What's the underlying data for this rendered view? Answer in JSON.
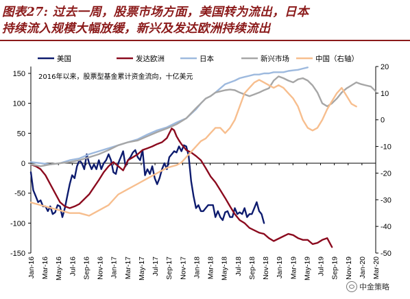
{
  "header": {
    "title_line1": "图表27: 过去一周，股票市场方面，美国转为流出，日本",
    "title_line2": "持续流入规模大幅放缓，新兴及发达欧洲持续流出"
  },
  "watermark": {
    "text": "中金策略",
    "icon": "wechat-icon"
  },
  "chart_data": {
    "type": "line",
    "annotation": "2016年以来，股票型基金累计资金流向，十亿美元",
    "x_tick_labels": [
      "Jan-16",
      "Mar-16",
      "May-16",
      "Jul-16",
      "Sep-16",
      "Nov-16",
      "Jan-17",
      "Mar-17",
      "May-17",
      "Jul-17",
      "Sep-17",
      "Nov-17",
      "Jan-18",
      "Mar-18",
      "May-18",
      "Jul-18",
      "Sep-18",
      "Nov-18",
      "Jan-19",
      "Mar-19",
      "May-19",
      "Jul-19",
      "Sep-19",
      "Nov-19",
      "Jan-20",
      "Mar-20"
    ],
    "x_range": [
      "2016-01",
      "2020-03"
    ],
    "left_axis": {
      "ylim": [
        -150,
        150
      ],
      "ticks": [
        150,
        100,
        50,
        0,
        -50,
        -100,
        -150
      ]
    },
    "right_axis": {
      "label": "右轴",
      "ylim": [
        -50,
        20
      ],
      "ticks": [
        20,
        10,
        0,
        -10,
        -20,
        -30,
        -40,
        -50
      ]
    },
    "grid": false,
    "legend_position": "top",
    "series": [
      {
        "name": "美国",
        "color": "#0D1B6E",
        "axis": "left",
        "points": [
          [
            0,
            -15
          ],
          [
            1,
            -45
          ],
          [
            2,
            -55
          ],
          [
            3,
            -65
          ],
          [
            4,
            -62
          ],
          [
            5,
            -72
          ],
          [
            6,
            -72
          ],
          [
            7,
            -80
          ],
          [
            8,
            -72
          ],
          [
            9,
            -85
          ],
          [
            10,
            -82
          ],
          [
            11,
            -70
          ],
          [
            12,
            -72
          ],
          [
            13,
            -90
          ],
          [
            14,
            -75
          ],
          [
            15,
            -55
          ],
          [
            16,
            -35
          ],
          [
            17,
            -20
          ],
          [
            18,
            -25
          ],
          [
            19,
            -5
          ],
          [
            20,
            5
          ],
          [
            21,
            0
          ],
          [
            22,
            -10
          ],
          [
            23,
            15
          ],
          [
            24,
            0
          ],
          [
            25,
            -10
          ],
          [
            26,
            -2
          ],
          [
            27,
            -10
          ],
          [
            28,
            5
          ],
          [
            29,
            -10
          ],
          [
            30,
            0
          ],
          [
            31,
            5
          ],
          [
            32,
            15
          ],
          [
            33,
            5
          ],
          [
            34,
            -15
          ],
          [
            35,
            -18
          ],
          [
            36,
            0
          ],
          [
            37,
            10
          ],
          [
            38,
            20
          ],
          [
            39,
            -5
          ],
          [
            40,
            5
          ],
          [
            41,
            10
          ],
          [
            42,
            18
          ],
          [
            43,
            22
          ],
          [
            44,
            10
          ],
          [
            45,
            5
          ],
          [
            46,
            22
          ],
          [
            47,
            -20
          ],
          [
            48,
            -10
          ],
          [
            49,
            -18
          ],
          [
            50,
            -5
          ],
          [
            51,
            -25
          ],
          [
            52,
            -35
          ],
          [
            53,
            -25
          ],
          [
            54,
            -10
          ],
          [
            55,
            0
          ],
          [
            56,
            -10
          ],
          [
            57,
            10
          ],
          [
            58,
            15
          ],
          [
            59,
            20
          ],
          [
            60,
            18
          ],
          [
            61,
            28
          ],
          [
            62,
            20
          ],
          [
            63,
            30
          ],
          [
            64,
            28
          ],
          [
            65,
            12
          ],
          [
            66,
            -30
          ],
          [
            67,
            -55
          ],
          [
            68,
            -75
          ],
          [
            69,
            -70
          ],
          [
            70,
            -80
          ],
          [
            71,
            -80
          ],
          [
            72,
            -75
          ],
          [
            73,
            -70
          ],
          [
            74,
            -70
          ],
          [
            75,
            -70
          ],
          [
            76,
            -90
          ],
          [
            77,
            -80
          ],
          [
            78,
            -90
          ],
          [
            79,
            -95
          ],
          [
            80,
            -82
          ],
          [
            81,
            -80
          ],
          [
            82,
            -90
          ],
          [
            83,
            -90
          ],
          [
            84,
            -75
          ],
          [
            85,
            -85
          ],
          [
            86,
            -82
          ],
          [
            87,
            -85
          ],
          [
            88,
            -75
          ],
          [
            89,
            -90
          ],
          [
            90,
            -85
          ],
          [
            91,
            -85
          ],
          [
            92,
            -75
          ],
          [
            93,
            -65
          ],
          [
            94,
            -80
          ],
          [
            95,
            -85
          ],
          [
            96,
            -100
          ]
        ]
      },
      {
        "name": "发达欧洲",
        "color": "#8B0A1E",
        "axis": "left",
        "points": [
          [
            0,
            -2
          ],
          [
            2,
            -5
          ],
          [
            4,
            -10
          ],
          [
            6,
            -20
          ],
          [
            8,
            -35
          ],
          [
            10,
            -50
          ],
          [
            12,
            -65
          ],
          [
            14,
            -72
          ],
          [
            16,
            -75
          ],
          [
            18,
            -72
          ],
          [
            20,
            -68
          ],
          [
            22,
            -60
          ],
          [
            24,
            -52
          ],
          [
            26,
            -40
          ],
          [
            28,
            -28
          ],
          [
            30,
            -15
          ],
          [
            32,
            -5
          ],
          [
            34,
            2
          ],
          [
            36,
            -5
          ],
          [
            38,
            -12
          ],
          [
            40,
            5
          ],
          [
            42,
            10
          ],
          [
            44,
            15
          ],
          [
            46,
            22
          ],
          [
            48,
            25
          ],
          [
            50,
            28
          ],
          [
            52,
            32
          ],
          [
            54,
            35
          ],
          [
            56,
            42
          ],
          [
            57,
            50
          ],
          [
            58,
            58
          ],
          [
            59,
            55
          ],
          [
            60,
            45
          ],
          [
            61,
            38
          ],
          [
            62,
            32
          ],
          [
            64,
            22
          ],
          [
            66,
            18
          ],
          [
            68,
            12
          ],
          [
            70,
            5
          ],
          [
            72,
            -8
          ],
          [
            74,
            -22
          ],
          [
            76,
            -32
          ],
          [
            78,
            -45
          ],
          [
            80,
            -58
          ],
          [
            82,
            -72
          ],
          [
            84,
            -85
          ],
          [
            86,
            -95
          ],
          [
            88,
            -100
          ],
          [
            90,
            -108
          ],
          [
            92,
            -112
          ],
          [
            94,
            -116
          ],
          [
            96,
            -118
          ],
          [
            98,
            -125
          ],
          [
            100,
            -130
          ],
          [
            102,
            -126
          ],
          [
            104,
            -122
          ],
          [
            106,
            -118
          ],
          [
            108,
            -120
          ],
          [
            110,
            -125
          ],
          [
            112,
            -128
          ],
          [
            114,
            -128
          ],
          [
            116,
            -135
          ],
          [
            118,
            -133
          ],
          [
            120,
            -128
          ],
          [
            122,
            -125
          ],
          [
            124,
            -140
          ]
        ]
      },
      {
        "name": "日本",
        "color": "#9DB9DE",
        "axis": "left",
        "points": [
          [
            0,
            2
          ],
          [
            4,
            0
          ],
          [
            8,
            -2
          ],
          [
            12,
            0
          ],
          [
            16,
            5
          ],
          [
            20,
            8
          ],
          [
            24,
            15
          ],
          [
            28,
            20
          ],
          [
            32,
            25
          ],
          [
            36,
            30
          ],
          [
            40,
            35
          ],
          [
            44,
            40
          ],
          [
            48,
            48
          ],
          [
            52,
            55
          ],
          [
            56,
            60
          ],
          [
            60,
            68
          ],
          [
            64,
            75
          ],
          [
            68,
            90
          ],
          [
            70,
            100
          ],
          [
            72,
            108
          ],
          [
            74,
            112
          ],
          [
            76,
            118
          ],
          [
            78,
            125
          ],
          [
            80,
            132
          ],
          [
            82,
            135
          ],
          [
            84,
            138
          ],
          [
            86,
            142
          ],
          [
            88,
            144
          ],
          [
            90,
            146
          ],
          [
            92,
            148
          ],
          [
            94,
            148
          ],
          [
            96,
            150
          ],
          [
            98,
            150
          ],
          [
            100,
            152
          ],
          [
            102,
            152
          ],
          [
            104,
            152
          ],
          [
            106,
            154
          ],
          [
            108,
            155
          ],
          [
            110,
            156
          ],
          [
            112,
            158
          ],
          [
            114,
            160
          ]
        ]
      },
      {
        "name": "新兴市场",
        "color": "#A6A6A6",
        "axis": "left",
        "points": [
          [
            0,
            -2
          ],
          [
            4,
            -5
          ],
          [
            8,
            -2
          ],
          [
            12,
            0
          ],
          [
            16,
            2
          ],
          [
            20,
            5
          ],
          [
            24,
            10
          ],
          [
            28,
            15
          ],
          [
            32,
            22
          ],
          [
            36,
            30
          ],
          [
            40,
            35
          ],
          [
            44,
            38
          ],
          [
            48,
            45
          ],
          [
            52,
            52
          ],
          [
            56,
            58
          ],
          [
            60,
            65
          ],
          [
            64,
            75
          ],
          [
            68,
            92
          ],
          [
            70,
            100
          ],
          [
            72,
            108
          ],
          [
            74,
            112
          ],
          [
            76,
            118
          ],
          [
            78,
            120
          ],
          [
            80,
            122
          ],
          [
            82,
            123
          ],
          [
            84,
            122
          ],
          [
            86,
            118
          ],
          [
            88,
            115
          ],
          [
            90,
            112
          ],
          [
            92,
            115
          ],
          [
            94,
            118
          ],
          [
            96,
            122
          ],
          [
            98,
            125
          ],
          [
            100,
            138
          ],
          [
            102,
            145
          ],
          [
            104,
            142
          ],
          [
            106,
            138
          ],
          [
            108,
            135
          ],
          [
            110,
            140
          ],
          [
            112,
            142
          ],
          [
            114,
            138
          ],
          [
            116,
            130
          ],
          [
            118,
            118
          ],
          [
            120,
            100
          ],
          [
            122,
            95
          ],
          [
            124,
            100
          ],
          [
            126,
            108
          ],
          [
            128,
            118
          ],
          [
            130,
            125
          ],
          [
            132,
            130
          ],
          [
            134,
            135
          ],
          [
            136,
            132
          ],
          [
            138,
            130
          ],
          [
            140,
            128
          ],
          [
            142,
            120
          ]
        ]
      },
      {
        "name": "中国（右轴）",
        "color": "#F7BE8E",
        "axis": "right",
        "points": [
          [
            0,
            -31
          ],
          [
            4,
            -32
          ],
          [
            8,
            -33
          ],
          [
            12,
            -34
          ],
          [
            16,
            -35
          ],
          [
            20,
            -35
          ],
          [
            24,
            -36
          ],
          [
            28,
            -34
          ],
          [
            32,
            -32
          ],
          [
            36,
            -28
          ],
          [
            40,
            -26
          ],
          [
            44,
            -24
          ],
          [
            48,
            -22
          ],
          [
            52,
            -20
          ],
          [
            56,
            -18
          ],
          [
            60,
            -17
          ],
          [
            62,
            -16
          ],
          [
            64,
            -14
          ],
          [
            66,
            -12
          ],
          [
            68,
            -10
          ],
          [
            70,
            -8
          ],
          [
            72,
            -7
          ],
          [
            74,
            -5
          ],
          [
            76,
            -3
          ],
          [
            78,
            -3
          ],
          [
            80,
            -5
          ],
          [
            82,
            -3
          ],
          [
            84,
            0
          ],
          [
            86,
            5
          ],
          [
            88,
            10
          ],
          [
            90,
            12
          ],
          [
            92,
            14
          ],
          [
            94,
            15
          ],
          [
            96,
            14
          ],
          [
            98,
            13
          ],
          [
            100,
            12
          ],
          [
            102,
            13
          ],
          [
            104,
            12
          ],
          [
            106,
            10
          ],
          [
            108,
            8
          ],
          [
            110,
            5
          ],
          [
            112,
            0
          ],
          [
            114,
            -3
          ],
          [
            116,
            -4
          ],
          [
            118,
            -3
          ],
          [
            120,
            0
          ],
          [
            122,
            4
          ],
          [
            124,
            7
          ],
          [
            126,
            10
          ],
          [
            128,
            12
          ],
          [
            130,
            9
          ],
          [
            132,
            6
          ],
          [
            134,
            5
          ]
        ]
      }
    ]
  }
}
